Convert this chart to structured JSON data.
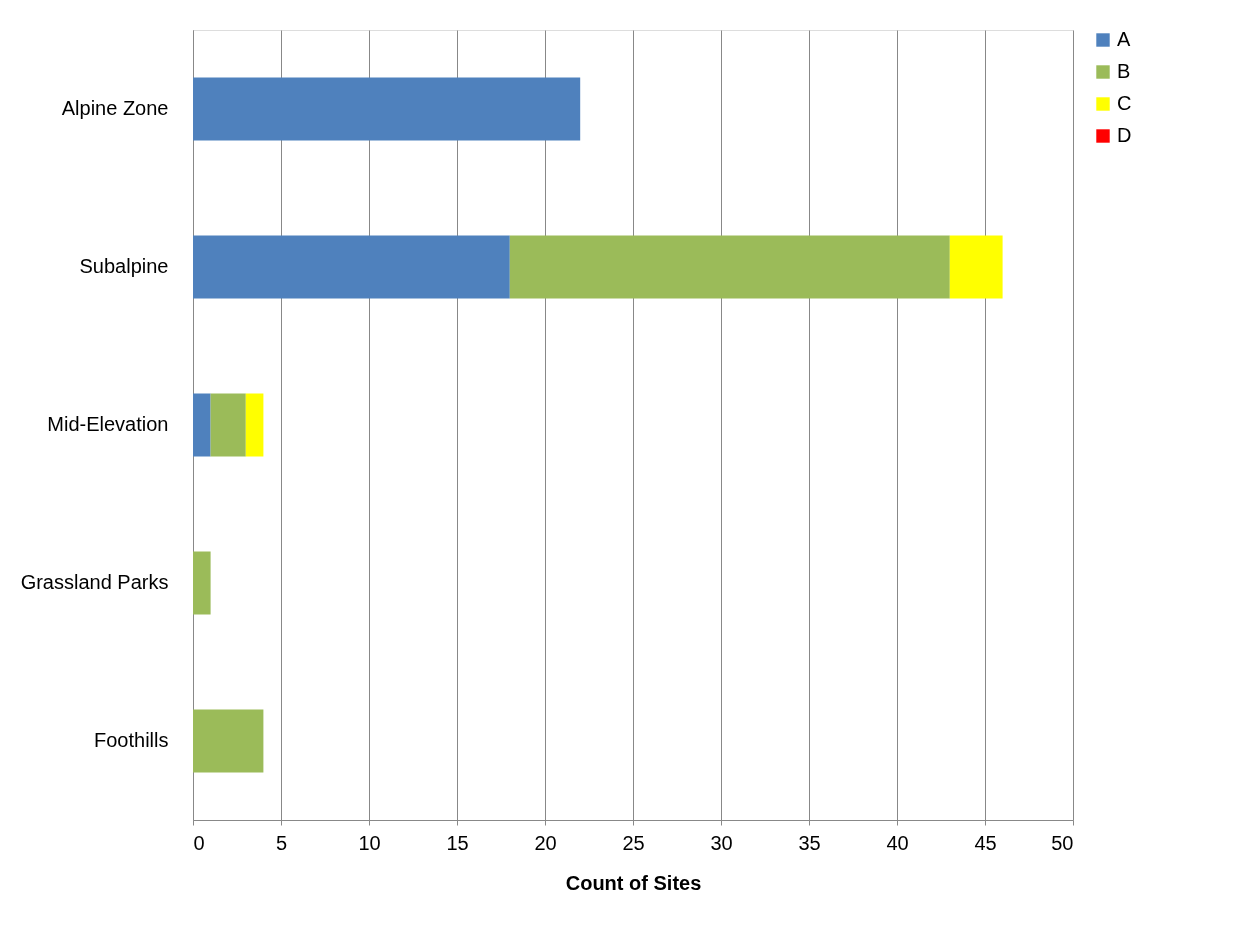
{
  "chart_data": {
    "type": "bar",
    "orientation": "horizontal",
    "stacked": true,
    "categories": [
      "Alpine Zone",
      "Subalpine",
      "Mid-Elevation",
      "Grassland Parks",
      "Foothills"
    ],
    "series": [
      {
        "name": "A",
        "color": "#4f81bd",
        "values": [
          22,
          18,
          1,
          null,
          null
        ]
      },
      {
        "name": "B",
        "color": "#9bbb59",
        "values": [
          null,
          25,
          2,
          1,
          4
        ]
      },
      {
        "name": "C",
        "color": "#ffff00",
        "values": [
          null,
          3,
          1,
          null,
          null
        ]
      },
      {
        "name": "D",
        "color": "#ff0000",
        "values": [
          null,
          null,
          null,
          null,
          null
        ]
      }
    ],
    "xlabel": "Count of Sites",
    "xlim": [
      0,
      50
    ],
    "xticks": [
      0,
      5,
      10,
      15,
      20,
      25,
      30,
      35,
      40,
      45,
      50
    ],
    "grid": "x",
    "legend": "right"
  }
}
